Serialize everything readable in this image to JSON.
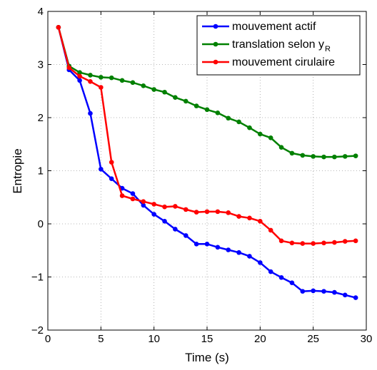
{
  "chart_data": {
    "type": "line",
    "xlabel": "Time (s)",
    "ylabel": "Entropie",
    "xlim": [
      0,
      30
    ],
    "ylim": [
      -2,
      4
    ],
    "xticks": [
      0,
      5,
      10,
      15,
      20,
      25,
      30
    ],
    "yticks": [
      -2,
      -1,
      0,
      1,
      2,
      3,
      4
    ],
    "xtick_labels": [
      "0",
      "5",
      "10",
      "15",
      "20",
      "25",
      "30"
    ],
    "ytick_labels": [
      "−2",
      "−1",
      "0",
      "1",
      "2",
      "3",
      "4"
    ],
    "grid": true,
    "legend_position": "top-right",
    "series": [
      {
        "name": "mouvement actif",
        "color": "#0000ff",
        "x": [
          1,
          2,
          3,
          4,
          5,
          6,
          7,
          8,
          9,
          10,
          11,
          12,
          13,
          14,
          15,
          16,
          17,
          18,
          19,
          20,
          21,
          22,
          23,
          24,
          25,
          26,
          27,
          28,
          29
        ],
        "y": [
          3.7,
          2.9,
          2.7,
          2.08,
          1.03,
          0.85,
          0.67,
          0.57,
          0.35,
          0.18,
          0.05,
          -0.1,
          -0.22,
          -0.38,
          -0.38,
          -0.44,
          -0.49,
          -0.54,
          -0.61,
          -0.73,
          -0.9,
          -1.01,
          -1.11,
          -1.27,
          -1.26,
          -1.27,
          -1.29,
          -1.34,
          -1.39
        ]
      },
      {
        "name": "translation selon y",
        "name_subscript": "R",
        "color": "#008000",
        "x": [
          1,
          2,
          3,
          4,
          5,
          6,
          7,
          8,
          9,
          10,
          11,
          12,
          13,
          14,
          15,
          16,
          17,
          18,
          19,
          20,
          21,
          22,
          23,
          24,
          25,
          26,
          27,
          28,
          29
        ],
        "y": [
          3.7,
          2.97,
          2.85,
          2.8,
          2.76,
          2.75,
          2.7,
          2.66,
          2.6,
          2.53,
          2.48,
          2.38,
          2.31,
          2.22,
          2.15,
          2.09,
          1.99,
          1.92,
          1.81,
          1.69,
          1.62,
          1.44,
          1.33,
          1.29,
          1.27,
          1.26,
          1.26,
          1.27,
          1.28
        ]
      },
      {
        "name": "mouvement cirulaire",
        "color": "#ff0000",
        "x": [
          1,
          2,
          3,
          4,
          5,
          6,
          7,
          8,
          9,
          10,
          11,
          12,
          13,
          14,
          15,
          16,
          17,
          18,
          19,
          20,
          21,
          22,
          23,
          24,
          25,
          26,
          27,
          28,
          29
        ],
        "y": [
          3.7,
          2.94,
          2.78,
          2.68,
          2.57,
          1.16,
          0.53,
          0.47,
          0.42,
          0.37,
          0.32,
          0.33,
          0.27,
          0.22,
          0.23,
          0.23,
          0.21,
          0.14,
          0.11,
          0.05,
          -0.12,
          -0.32,
          -0.36,
          -0.37,
          -0.37,
          -0.36,
          -0.35,
          -0.33,
          -0.32
        ]
      }
    ]
  }
}
